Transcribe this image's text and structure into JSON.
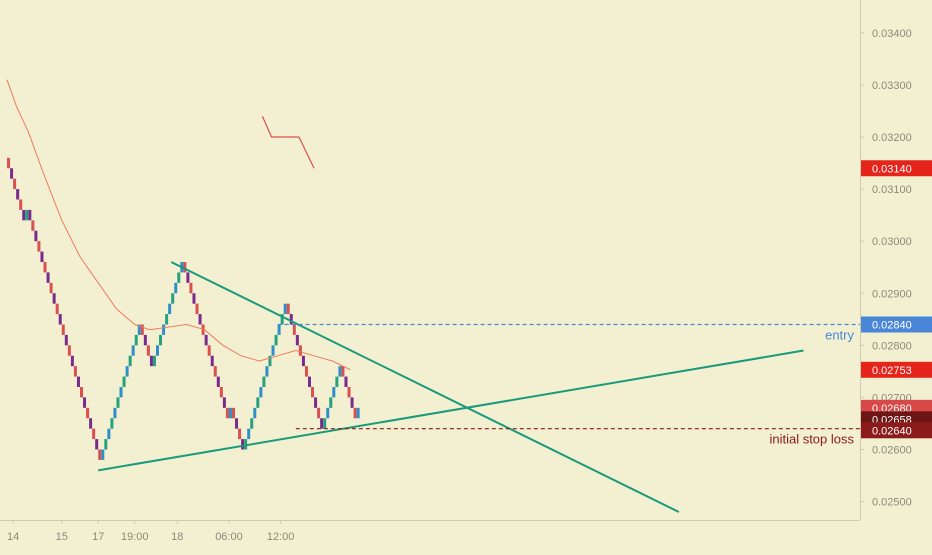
{
  "chart_data": {
    "type": "renko",
    "y_axis": {
      "range": [
        0.0248,
        0.0344
      ],
      "ticks": [
        "0.03400",
        "0.03300",
        "0.03200",
        "0.03100",
        "0.03000",
        "0.02900",
        "0.02800",
        "0.02700",
        "0.02600",
        "0.02500"
      ],
      "tick_values": [
        0.034,
        0.033,
        0.032,
        0.031,
        0.03,
        0.029,
        0.028,
        0.027,
        0.026,
        0.025
      ]
    },
    "x_axis": {
      "ticks": [
        {
          "label": "14",
          "brick": 3
        },
        {
          "label": "15",
          "brick": 19
        },
        {
          "label": "17",
          "brick": 31
        },
        {
          "label": "19:00",
          "brick": 43
        },
        {
          "label": "18",
          "brick": 57
        },
        {
          "label": "06:00",
          "brick": 74
        },
        {
          "label": "12:00",
          "brick": 91
        }
      ]
    },
    "renko_bricks": [
      {
        "x": 1,
        "from": 0.0316,
        "to": 0.0314
      },
      {
        "x": 2,
        "from": 0.0314,
        "to": 0.0312
      },
      {
        "x": 3,
        "from": 0.0312,
        "to": 0.031
      },
      {
        "x": 4,
        "from": 0.031,
        "to": 0.0308
      },
      {
        "x": 5,
        "from": 0.0308,
        "to": 0.0306
      },
      {
        "x": 6,
        "from": 0.0306,
        "to": 0.0304
      },
      {
        "x": 7,
        "from": 0.0304,
        "to": 0.0306
      },
      {
        "x": 8,
        "from": 0.0306,
        "to": 0.0304
      },
      {
        "x": 9,
        "from": 0.0304,
        "to": 0.0302
      },
      {
        "x": 10,
        "from": 0.0302,
        "to": 0.03
      },
      {
        "x": 11,
        "from": 0.03,
        "to": 0.0298
      },
      {
        "x": 12,
        "from": 0.0298,
        "to": 0.0296
      },
      {
        "x": 13,
        "from": 0.0296,
        "to": 0.0294
      },
      {
        "x": 14,
        "from": 0.0294,
        "to": 0.0292
      },
      {
        "x": 15,
        "from": 0.0292,
        "to": 0.029
      },
      {
        "x": 16,
        "from": 0.029,
        "to": 0.0288
      },
      {
        "x": 17,
        "from": 0.0288,
        "to": 0.0286
      },
      {
        "x": 18,
        "from": 0.0286,
        "to": 0.0284
      },
      {
        "x": 19,
        "from": 0.0284,
        "to": 0.0282
      },
      {
        "x": 20,
        "from": 0.0282,
        "to": 0.028
      },
      {
        "x": 21,
        "from": 0.028,
        "to": 0.0278
      },
      {
        "x": 22,
        "from": 0.0278,
        "to": 0.0276
      },
      {
        "x": 23,
        "from": 0.0276,
        "to": 0.0274
      },
      {
        "x": 24,
        "from": 0.0274,
        "to": 0.0272
      },
      {
        "x": 25,
        "from": 0.0272,
        "to": 0.027
      },
      {
        "x": 26,
        "from": 0.027,
        "to": 0.0268
      },
      {
        "x": 27,
        "from": 0.0268,
        "to": 0.0266
      },
      {
        "x": 28,
        "from": 0.0266,
        "to": 0.0264
      },
      {
        "x": 29,
        "from": 0.0264,
        "to": 0.0262
      },
      {
        "x": 30,
        "from": 0.0262,
        "to": 0.026
      },
      {
        "x": 31,
        "from": 0.026,
        "to": 0.0258
      },
      {
        "x": 32,
        "from": 0.0258,
        "to": 0.026
      },
      {
        "x": 33,
        "from": 0.026,
        "to": 0.0262
      },
      {
        "x": 34,
        "from": 0.0262,
        "to": 0.0264
      },
      {
        "x": 35,
        "from": 0.0264,
        "to": 0.0266
      },
      {
        "x": 36,
        "from": 0.0266,
        "to": 0.0268
      },
      {
        "x": 37,
        "from": 0.0268,
        "to": 0.027
      },
      {
        "x": 38,
        "from": 0.027,
        "to": 0.0272
      },
      {
        "x": 39,
        "from": 0.0272,
        "to": 0.0274
      },
      {
        "x": 40,
        "from": 0.0274,
        "to": 0.0276
      },
      {
        "x": 41,
        "from": 0.0276,
        "to": 0.0278
      },
      {
        "x": 42,
        "from": 0.0278,
        "to": 0.028
      },
      {
        "x": 43,
        "from": 0.028,
        "to": 0.0282
      },
      {
        "x": 44,
        "from": 0.0282,
        "to": 0.0284
      },
      {
        "x": 45,
        "from": 0.0284,
        "to": 0.0282
      },
      {
        "x": 46,
        "from": 0.0282,
        "to": 0.028
      },
      {
        "x": 47,
        "from": 0.028,
        "to": 0.0278
      },
      {
        "x": 48,
        "from": 0.0278,
        "to": 0.0276
      },
      {
        "x": 49,
        "from": 0.0276,
        "to": 0.0278
      },
      {
        "x": 50,
        "from": 0.0278,
        "to": 0.028
      },
      {
        "x": 51,
        "from": 0.028,
        "to": 0.0282
      },
      {
        "x": 52,
        "from": 0.0282,
        "to": 0.0284
      },
      {
        "x": 53,
        "from": 0.0284,
        "to": 0.0286
      },
      {
        "x": 54,
        "from": 0.0286,
        "to": 0.0288
      },
      {
        "x": 55,
        "from": 0.0288,
        "to": 0.029
      },
      {
        "x": 56,
        "from": 0.029,
        "to": 0.0292
      },
      {
        "x": 57,
        "from": 0.0292,
        "to": 0.0294
      },
      {
        "x": 58,
        "from": 0.0294,
        "to": 0.0296
      },
      {
        "x": 59,
        "from": 0.0296,
        "to": 0.0294
      },
      {
        "x": 60,
        "from": 0.0294,
        "to": 0.0292
      },
      {
        "x": 61,
        "from": 0.0292,
        "to": 0.029
      },
      {
        "x": 62,
        "from": 0.029,
        "to": 0.0288
      },
      {
        "x": 63,
        "from": 0.0288,
        "to": 0.0286
      },
      {
        "x": 64,
        "from": 0.0286,
        "to": 0.0284
      },
      {
        "x": 65,
        "from": 0.0284,
        "to": 0.0282
      },
      {
        "x": 66,
        "from": 0.0282,
        "to": 0.028
      },
      {
        "x": 67,
        "from": 0.028,
        "to": 0.0278
      },
      {
        "x": 68,
        "from": 0.0278,
        "to": 0.0276
      },
      {
        "x": 69,
        "from": 0.0276,
        "to": 0.0274
      },
      {
        "x": 70,
        "from": 0.0274,
        "to": 0.0272
      },
      {
        "x": 71,
        "from": 0.0272,
        "to": 0.027
      },
      {
        "x": 72,
        "from": 0.027,
        "to": 0.0268
      },
      {
        "x": 73,
        "from": 0.0268,
        "to": 0.0266
      },
      {
        "x": 74,
        "from": 0.0266,
        "to": 0.0268
      },
      {
        "x": 75,
        "from": 0.0268,
        "to": 0.0266
      },
      {
        "x": 76,
        "from": 0.0266,
        "to": 0.0264
      },
      {
        "x": 77,
        "from": 0.0264,
        "to": 0.0262
      },
      {
        "x": 78,
        "from": 0.0262,
        "to": 0.026
      },
      {
        "x": 79,
        "from": 0.026,
        "to": 0.0262
      },
      {
        "x": 80,
        "from": 0.0262,
        "to": 0.0264
      },
      {
        "x": 81,
        "from": 0.0264,
        "to": 0.0266
      },
      {
        "x": 82,
        "from": 0.0266,
        "to": 0.0268
      },
      {
        "x": 83,
        "from": 0.0268,
        "to": 0.027
      },
      {
        "x": 84,
        "from": 0.027,
        "to": 0.0272
      },
      {
        "x": 85,
        "from": 0.0272,
        "to": 0.0274
      },
      {
        "x": 86,
        "from": 0.0274,
        "to": 0.0276
      },
      {
        "x": 87,
        "from": 0.0276,
        "to": 0.0278
      },
      {
        "x": 88,
        "from": 0.0278,
        "to": 0.028
      },
      {
        "x": 89,
        "from": 0.028,
        "to": 0.0282
      },
      {
        "x": 90,
        "from": 0.0282,
        "to": 0.0284
      },
      {
        "x": 91,
        "from": 0.0284,
        "to": 0.0286
      },
      {
        "x": 92,
        "from": 0.0286,
        "to": 0.0288
      },
      {
        "x": 93,
        "from": 0.0288,
        "to": 0.0286
      },
      {
        "x": 94,
        "from": 0.0286,
        "to": 0.0284
      },
      {
        "x": 95,
        "from": 0.0284,
        "to": 0.0282
      },
      {
        "x": 96,
        "from": 0.0282,
        "to": 0.028
      },
      {
        "x": 97,
        "from": 0.028,
        "to": 0.0278
      },
      {
        "x": 98,
        "from": 0.0278,
        "to": 0.0276
      },
      {
        "x": 99,
        "from": 0.0276,
        "to": 0.0274
      },
      {
        "x": 100,
        "from": 0.0274,
        "to": 0.0272
      },
      {
        "x": 101,
        "from": 0.0272,
        "to": 0.027
      },
      {
        "x": 102,
        "from": 0.027,
        "to": 0.0268
      },
      {
        "x": 103,
        "from": 0.0268,
        "to": 0.0266
      },
      {
        "x": 104,
        "from": 0.0266,
        "to": 0.0264
      },
      {
        "x": 105,
        "from": 0.0264,
        "to": 0.0266
      },
      {
        "x": 106,
        "from": 0.0266,
        "to": 0.0268
      },
      {
        "x": 107,
        "from": 0.0268,
        "to": 0.027
      },
      {
        "x": 108,
        "from": 0.027,
        "to": 0.0272
      },
      {
        "x": 109,
        "from": 0.0272,
        "to": 0.0274
      },
      {
        "x": 110,
        "from": 0.0274,
        "to": 0.0276
      },
      {
        "x": 111,
        "from": 0.0276,
        "to": 0.0274
      },
      {
        "x": 112,
        "from": 0.0274,
        "to": 0.0272
      },
      {
        "x": 113,
        "from": 0.0272,
        "to": 0.027
      },
      {
        "x": 114,
        "from": 0.027,
        "to": 0.0268
      },
      {
        "x": 115,
        "from": 0.0268,
        "to": 0.0266
      },
      {
        "x": 116,
        "from": 0.0266,
        "to": 0.0268
      }
    ],
    "moving_average": [
      {
        "x": 1,
        "y": 0.0331
      },
      {
        "x": 4,
        "y": 0.0326
      },
      {
        "x": 8,
        "y": 0.0321
      },
      {
        "x": 13,
        "y": 0.0313
      },
      {
        "x": 19,
        "y": 0.0304
      },
      {
        "x": 25,
        "y": 0.0297
      },
      {
        "x": 31,
        "y": 0.0292
      },
      {
        "x": 37,
        "y": 0.0287
      },
      {
        "x": 43,
        "y": 0.0284
      },
      {
        "x": 48,
        "y": 0.0283
      },
      {
        "x": 54,
        "y": 0.02835
      },
      {
        "x": 60,
        "y": 0.0284
      },
      {
        "x": 66,
        "y": 0.0283
      },
      {
        "x": 72,
        "y": 0.028
      },
      {
        "x": 78,
        "y": 0.0278
      },
      {
        "x": 84,
        "y": 0.0277
      },
      {
        "x": 90,
        "y": 0.0278
      },
      {
        "x": 96,
        "y": 0.0279
      },
      {
        "x": 102,
        "y": 0.0278
      },
      {
        "x": 108,
        "y": 0.0277
      },
      {
        "x": 114,
        "y": 0.02753
      }
    ],
    "orphan_line": [
      {
        "x": 85,
        "y": 0.0324
      },
      {
        "x": 88,
        "y": 0.032
      },
      {
        "x": 97,
        "y": 0.032
      },
      {
        "x": 102,
        "y": 0.0314
      }
    ],
    "trendlines": [
      {
        "id": "upper-trendline",
        "from": {
          "x": 55,
          "y": 0.0296
        },
        "to": {
          "x": 222,
          "y": 0.0248
        }
      },
      {
        "id": "lower-trendline",
        "from": {
          "x": 31,
          "y": 0.0256
        },
        "to": {
          "x": 263,
          "y": 0.0279
        }
      }
    ],
    "hlines": [
      {
        "id": "entry-line",
        "y": 0.0284,
        "from_x": 90,
        "label": "entry",
        "color": "#4a86d8",
        "dash": true
      },
      {
        "id": "stop-loss-line",
        "y": 0.0264,
        "from_x": 96,
        "label": "initial stop loss",
        "color": "#8b1a1a",
        "dash": true
      }
    ],
    "price_tags": [
      {
        "value": "0.03140",
        "y": 0.0314,
        "color": "#e5241b"
      },
      {
        "value": "0.02840",
        "y": 0.0284,
        "color": "#4a86d8"
      },
      {
        "value": "0.02753",
        "y": 0.02753,
        "color": "#e5241b"
      },
      {
        "value": "0.02680",
        "y": 0.0268,
        "color": "#d94848"
      },
      {
        "value": "0.02658",
        "y": 0.02658,
        "color": "#6e1515"
      },
      {
        "value": "0.02640",
        "y": 0.0264,
        "color": "#8b1a1a"
      }
    ],
    "colors": {
      "background": "#f3f0d2",
      "up_brick": "#26a17d",
      "up_brick_alt": "#2f8fc9",
      "down_brick": "#d95050",
      "down_brick_alt": "#7a2a8a",
      "ma": "#f07a5c",
      "trendline": "#1a9a7a",
      "axis_text": "#8a8a7a",
      "axis_line": "#cfcbb0"
    },
    "grid": false
  }
}
